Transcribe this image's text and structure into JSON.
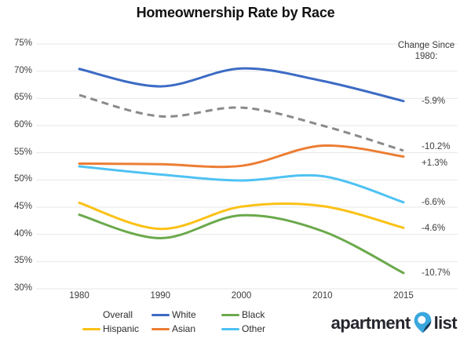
{
  "title": "Homeownership Rate by Race",
  "right_note": "Change Since 1980:",
  "chart_data": {
    "type": "line",
    "categories": [
      "1980",
      "1990",
      "2000",
      "2010",
      "2015"
    ],
    "series": [
      {
        "name": "Overall",
        "color": "#8a8a8a",
        "dashed": true,
        "values": [
          65.6,
          61.7,
          63.3,
          60.0,
          55.4
        ],
        "change_label": "-10.2%"
      },
      {
        "name": "White",
        "color": "#3c6bc4",
        "dashed": false,
        "values": [
          70.4,
          67.2,
          70.5,
          68.2,
          64.5
        ],
        "change_label": "-5.9%"
      },
      {
        "name": "Black",
        "color": "#6ba94c",
        "dashed": false,
        "values": [
          43.6,
          39.3,
          43.5,
          40.6,
          32.9
        ],
        "change_label": "-10.7%"
      },
      {
        "name": "Hispanic",
        "color": "#fbc116",
        "dashed": false,
        "values": [
          45.8,
          41.0,
          45.1,
          45.2,
          41.2
        ],
        "change_label": "-4.6%"
      },
      {
        "name": "Asian",
        "color": "#ec7d33",
        "dashed": false,
        "values": [
          53.0,
          52.9,
          52.6,
          56.3,
          54.3
        ],
        "change_label": "+1.3%"
      },
      {
        "name": "Other",
        "color": "#4fc2f3",
        "dashed": false,
        "values": [
          52.5,
          51.0,
          49.9,
          50.7,
          45.9
        ],
        "change_label": "-6.6%"
      }
    ],
    "ylim": [
      30,
      75
    ],
    "y_ticks": [
      "75%",
      "70%",
      "65%",
      "60%",
      "55%",
      "50%",
      "45%",
      "40%",
      "35%",
      "30%"
    ],
    "grid": true,
    "legend_position": "bottom",
    "legend_order": [
      "Overall",
      "White",
      "Black",
      "Hispanic",
      "Asian",
      "Other"
    ]
  },
  "colors": {
    "gridline": "#e7e7e7",
    "tick_text": "#3c3c3c",
    "title_text": "#111111"
  },
  "logo": {
    "text_left": "apartment",
    "text_right": "list",
    "pin_color": "#3aa8de",
    "pin_dark_color": "#1c3c5c",
    "pin_hole_color": "#ffffff"
  }
}
